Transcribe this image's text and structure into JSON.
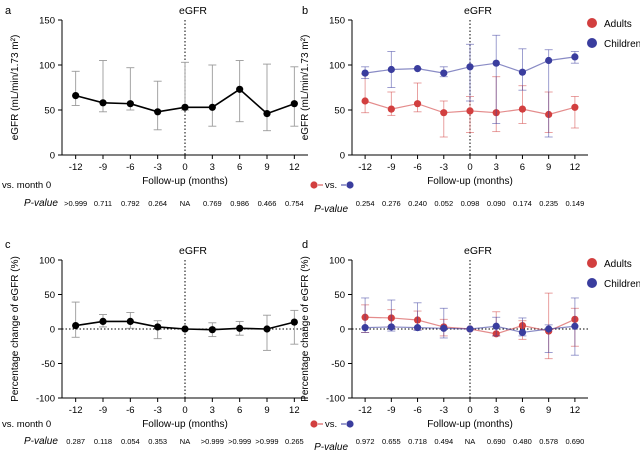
{
  "figure": {
    "colors": {
      "black": "#000000",
      "adults": "#d23f3f",
      "children": "#3a3d9e",
      "error_bar": "#9a9a9a"
    }
  },
  "chart_data": [
    {
      "panel_label": "a",
      "type": "line",
      "title": "eGFR",
      "ylabel": "eGFR (mL/min/1.73 m²)",
      "xlabel": "Follow-up (months)",
      "categories": [
        "-12",
        "-9",
        "-6",
        "-3",
        "0",
        "3",
        "6",
        "9",
        "12"
      ],
      "ylim": [
        0,
        150
      ],
      "yticks": [
        0,
        50,
        100,
        150
      ],
      "series": [
        {
          "color": "#000000",
          "values": [
            66,
            58,
            57,
            48,
            53,
            53,
            73,
            46,
            57
          ],
          "upper": [
            93,
            105,
            97,
            82,
            103,
            100,
            105,
            101,
            98
          ],
          "lower": [
            55,
            48,
            50,
            28,
            50,
            32,
            37,
            27,
            32
          ]
        }
      ],
      "comparison_label": "vs. month 0",
      "p_label": "P-value",
      "p_values": [
        ">0.999",
        "0.711",
        "0.792",
        "0.264",
        "NA",
        "0.769",
        "0.986",
        "0.466",
        "0.754"
      ]
    },
    {
      "panel_label": "b",
      "type": "line",
      "title": "eGFR",
      "ylabel": "eGFR (mL/min/1.73 m²)",
      "xlabel": "Follow-up (months)",
      "categories": [
        "-12",
        "-9",
        "-6",
        "-3",
        "0",
        "3",
        "6",
        "9",
        "12"
      ],
      "ylim": [
        0,
        150
      ],
      "yticks": [
        0,
        50,
        100,
        150
      ],
      "legend_position": "top-right",
      "series": [
        {
          "name": "Adults",
          "color": "#d23f3f",
          "values": [
            60,
            51,
            57,
            47,
            49,
            47,
            51,
            45,
            53
          ],
          "upper": [
            90,
            70,
            80,
            60,
            65,
            87,
            77,
            70,
            65
          ],
          "lower": [
            47,
            44,
            48,
            20,
            25,
            26,
            35,
            25,
            30
          ]
        },
        {
          "name": "Children",
          "color": "#3a3d9e",
          "values": [
            91,
            95,
            96,
            91,
            98,
            102,
            92,
            105,
            109
          ],
          "upper": [
            98,
            115,
            96,
            98,
            123,
            133,
            118,
            117,
            115
          ],
          "lower": [
            85,
            75,
            96,
            87,
            60,
            35,
            72,
            20,
            102
          ]
        }
      ],
      "comparison_label": "vs.",
      "p_label": "P-value",
      "p_values": [
        "0.254",
        "0.276",
        "0.240",
        "0.052",
        "0.098",
        "0.090",
        "0.174",
        "0.235",
        "0.149"
      ]
    },
    {
      "panel_label": "c",
      "type": "line",
      "title": "eGFR",
      "ylabel": "Percentage change of eGFR (%)",
      "xlabel": "Follow-up (months)",
      "categories": [
        "-12",
        "-9",
        "-6",
        "-3",
        "0",
        "3",
        "6",
        "9",
        "12"
      ],
      "ylim": [
        -100,
        100
      ],
      "yticks": [
        -100,
        -50,
        0,
        50,
        100
      ],
      "series": [
        {
          "color": "#000000",
          "values": [
            5,
            11,
            11,
            3,
            0,
            -1,
            1,
            0,
            10
          ],
          "upper": [
            39,
            21,
            24,
            12,
            0,
            9,
            11,
            20,
            27
          ],
          "lower": [
            -12,
            3,
            1,
            -14,
            0,
            -11,
            -9,
            -31,
            -22
          ]
        }
      ],
      "comparison_label": "vs. month 0",
      "p_label": "P-value",
      "p_values": [
        "0.287",
        "0.118",
        "0.054",
        "0.353",
        "NA",
        ">0.999",
        ">0.999",
        ">0.999",
        "0.265"
      ]
    },
    {
      "panel_label": "d",
      "type": "line",
      "title": "eGFR",
      "ylabel": "Percentage change of eGFR (%)",
      "xlabel": "Follow-up (months)",
      "categories": [
        "-12",
        "-9",
        "-6",
        "-3",
        "0",
        "3",
        "6",
        "9",
        "12"
      ],
      "ylim": [
        -100,
        100
      ],
      "yticks": [
        -100,
        -50,
        0,
        50,
        100
      ],
      "legend_position": "top-right",
      "series": [
        {
          "name": "Adults",
          "color": "#d23f3f",
          "values": [
            17,
            16,
            13,
            3,
            0,
            -7,
            5,
            -3,
            14
          ],
          "upper": [
            35,
            28,
            26,
            14,
            0,
            25,
            12,
            52,
            30
          ],
          "lower": [
            -5,
            4,
            -1,
            -10,
            0,
            -10,
            -15,
            -43,
            -25
          ]
        },
        {
          "name": "Children",
          "color": "#3a3d9e",
          "values": [
            2,
            3,
            2,
            1,
            0,
            4,
            -5,
            0,
            4
          ],
          "upper": [
            45,
            42,
            38,
            30,
            0,
            17,
            16,
            6,
            45
          ],
          "lower": [
            -5,
            -3,
            -2,
            -13,
            0,
            -10,
            -10,
            -34,
            -38
          ]
        }
      ],
      "comparison_label": "vs.",
      "p_label": "P-value",
      "p_values": [
        "0.972",
        "0.655",
        "0.718",
        "0.494",
        "NA",
        "0.690",
        "0.480",
        "0.578",
        "0.690"
      ]
    }
  ]
}
